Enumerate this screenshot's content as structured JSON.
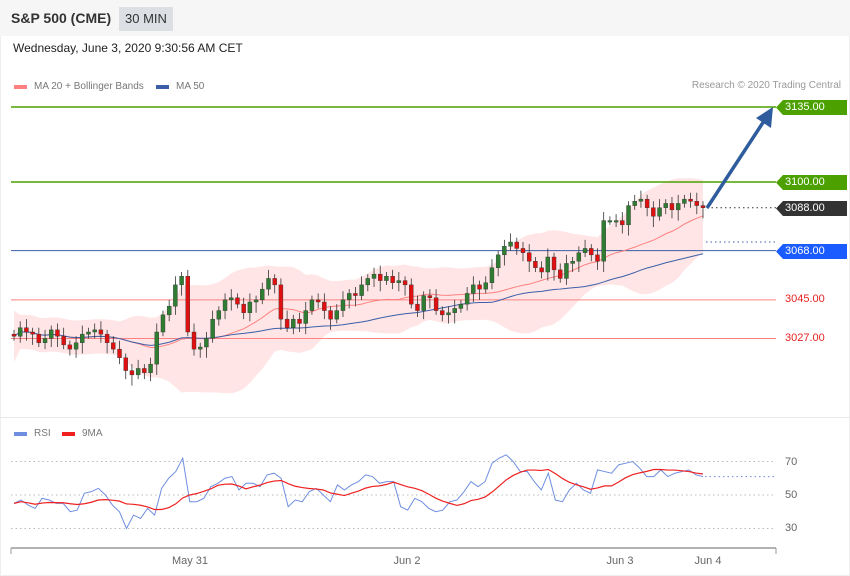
{
  "header": {
    "title": "S&P 500 (CME)",
    "interval": "30 MIN",
    "date": "Wednesday, June 3, 2020 9:30:56 AM CET"
  },
  "legend": {
    "ma20": "MA 20 + Bollinger Bands",
    "ma50": "MA 50",
    "copyright": "Research © 2020 Trading Central"
  },
  "rsi_legend": {
    "rsi": "RSI",
    "ma9": "9MA"
  },
  "colors": {
    "up": "#2e7d32",
    "down": "#e01010",
    "ma20": "#ff8080",
    "ma50": "#3a5fa8",
    "band": "#ffe0e0",
    "target": "#4ca100",
    "current": "#333333",
    "pivot": "#1a5cff",
    "support": "#e52222",
    "arrow": "#2f5c9c",
    "rsi": "#6f8ee0",
    "rsi_ma": "#ee2020"
  },
  "levels": {
    "target2": "3135.00",
    "target1": "3100.00",
    "current": "3088.00",
    "pivot": "3068.00",
    "support1": "3045.00",
    "support2": "3027.00"
  },
  "chart_data": [
    {
      "type": "candlestick",
      "yrange": [
        3002,
        3165
      ],
      "closes": [
        3028,
        3032,
        3030,
        3029,
        3025,
        3027,
        3031,
        3028,
        3024,
        3022,
        3025,
        3029,
        3030,
        3031,
        3029,
        3025,
        3022,
        3018,
        3012,
        3010,
        3013,
        3011,
        3015,
        3030,
        3038,
        3042,
        3052,
        3056,
        3030,
        3022,
        3023,
        3027,
        3036,
        3040,
        3045,
        3046,
        3043,
        3039,
        3044,
        3045,
        3050,
        3055,
        3052,
        3036,
        3032,
        3036,
        3034,
        3040,
        3045,
        3044,
        3040,
        3036,
        3040,
        3045,
        3048,
        3047,
        3052,
        3055,
        3057,
        3054,
        3056,
        3053,
        3054,
        3052,
        3043,
        3040,
        3047,
        3046,
        3040,
        3038,
        3039,
        3041,
        3043,
        3048,
        3052,
        3050,
        3053,
        3060,
        3066,
        3070,
        3072,
        3069,
        3067,
        3063,
        3060,
        3058,
        3065,
        3059,
        3055,
        3062,
        3063,
        3067,
        3069,
        3066,
        3063,
        3082,
        3082,
        3082,
        3080,
        3089,
        3091,
        3092,
        3088,
        3084,
        3088,
        3090,
        3087,
        3090,
        3092,
        3091,
        3089,
        3088
      ],
      "levels": [
        3135,
        3100,
        3088,
        3068,
        3045,
        3027
      ]
    },
    {
      "type": "line",
      "yrange": [
        20,
        80
      ],
      "yticks": [
        70,
        50,
        30
      ],
      "rsi": [
        45,
        47,
        44,
        42,
        48,
        47,
        45,
        45,
        40,
        41,
        51,
        52,
        54,
        50,
        44,
        40,
        30,
        38,
        36,
        42,
        38,
        54,
        60,
        64,
        72,
        46,
        46,
        48,
        55,
        57,
        60,
        61,
        53,
        57,
        57,
        55,
        62,
        63,
        60,
        43,
        47,
        46,
        52,
        54,
        50,
        46,
        56,
        53,
        56,
        58,
        62,
        61,
        57,
        58,
        58,
        43,
        41,
        48,
        46,
        42,
        40,
        41,
        46,
        47,
        52,
        58,
        55,
        58,
        69,
        72,
        74,
        70,
        64,
        64,
        58,
        53,
        63,
        47,
        46,
        53,
        57,
        53,
        51,
        65,
        64,
        63,
        68,
        69,
        70,
        66,
        61,
        61,
        65,
        61,
        63,
        64,
        65,
        62,
        61
      ],
      "xticks": [
        "May 31",
        "Jun 2",
        "Jun 3",
        "Jun 4"
      ]
    }
  ]
}
